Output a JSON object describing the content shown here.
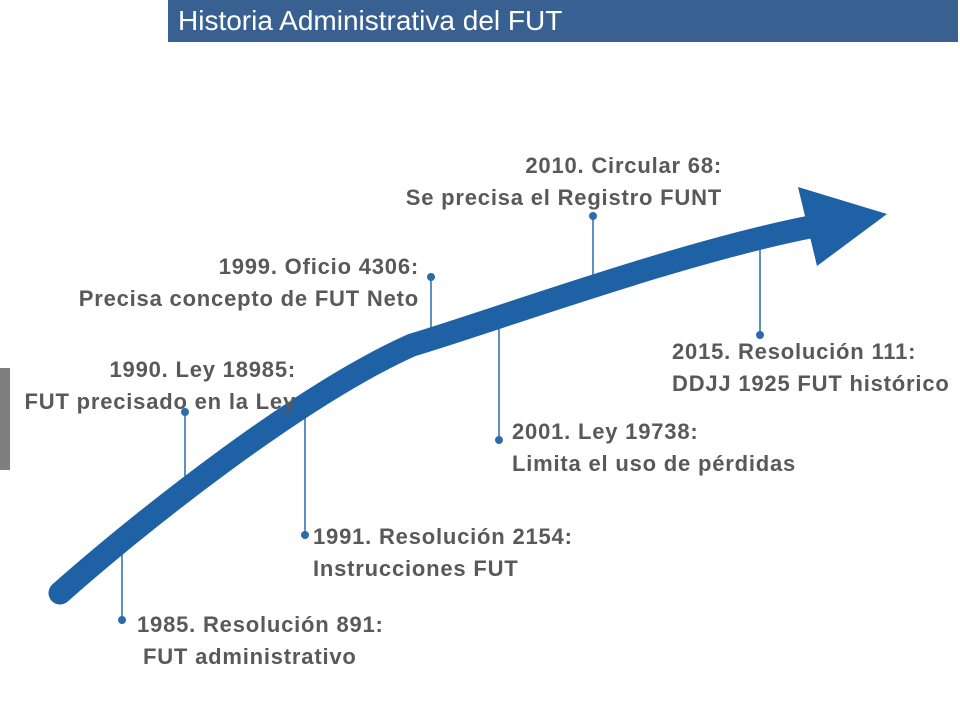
{
  "title": "Historia Administrativa del FUT",
  "colors": {
    "title_bar": "#386192",
    "arrow": "#1e62a5",
    "connector": "#2a6aad",
    "label": "#595959",
    "accent_bar": "#7f7f7f"
  },
  "events": [
    {
      "heading": "1985. Resolución 891:",
      "detail": "FUT administrativo"
    },
    {
      "heading": "1990. Ley 18985:",
      "detail": "FUT precisado en la Ley"
    },
    {
      "heading": "1991. Resolución 2154:",
      "detail": "Instrucciones FUT"
    },
    {
      "heading": "1999. Oficio 4306:",
      "detail": "Precisa concepto de FUT Neto"
    },
    {
      "heading": "2001. Ley 19738:",
      "detail": "Limita el uso de pérdidas"
    },
    {
      "heading": "2010. Circular 68:",
      "detail": "Se precisa el Registro FUNT"
    },
    {
      "heading": "2015. Resolución 111:",
      "detail": "DDJJ 1925 FUT histórico"
    }
  ]
}
